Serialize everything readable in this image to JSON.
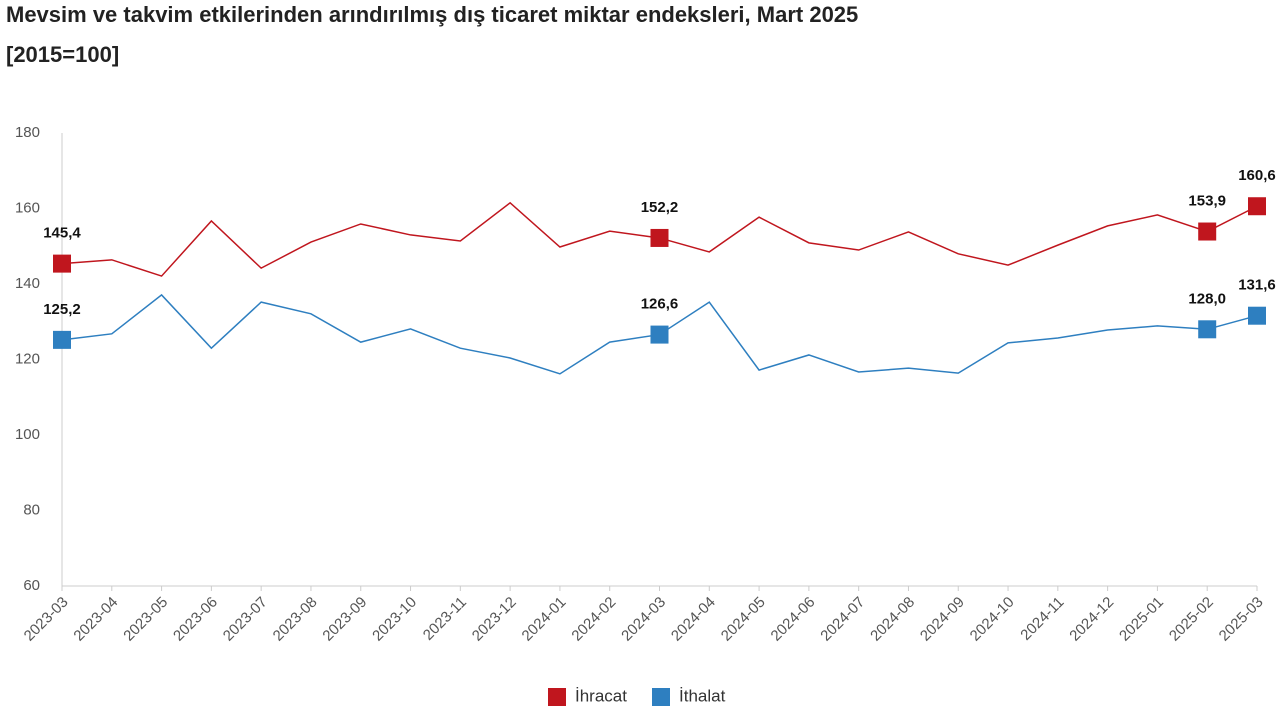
{
  "chart_data": {
    "type": "line",
    "title": "Mevsim ve takvim etkilerinden arındırılmış dış ticaret miktar endeksleri, Mart 2025",
    "subtitle": "[2015=100]",
    "categories": [
      "2023-03",
      "2023-04",
      "2023-05",
      "2023-06",
      "2023-07",
      "2023-08",
      "2023-09",
      "2023-10",
      "2023-11",
      "2023-12",
      "2024-01",
      "2024-02",
      "2024-03",
      "2024-04",
      "2024-05",
      "2024-06",
      "2024-07",
      "2024-08",
      "2024-09",
      "2024-10",
      "2024-11",
      "2024-12",
      "2025-01",
      "2025-02",
      "2025-03"
    ],
    "series": [
      {
        "name": "İhracat",
        "color": "#c0161e",
        "values": [
          145.4,
          146.4,
          142.1,
          156.7,
          144.2,
          151.1,
          155.9,
          153.0,
          151.4,
          161.5,
          149.8,
          154.0,
          152.2,
          148.5,
          157.7,
          150.9,
          149.0,
          153.8,
          148.0,
          145.0,
          150.3,
          155.4,
          158.3,
          153.9,
          160.6
        ],
        "value_labels": [
          "145,4",
          null,
          null,
          null,
          null,
          null,
          null,
          null,
          null,
          null,
          null,
          null,
          "152,2",
          null,
          null,
          null,
          null,
          null,
          null,
          null,
          null,
          null,
          null,
          "153,9",
          "160,6"
        ]
      },
      {
        "name": "İthalat",
        "color": "#2e7fc0",
        "values": [
          125.2,
          126.8,
          137.1,
          123.0,
          135.2,
          132.1,
          124.6,
          128.1,
          123.0,
          120.4,
          116.2,
          124.6,
          126.6,
          135.2,
          117.2,
          121.2,
          116.7,
          117.7,
          116.4,
          124.4,
          125.7,
          127.8,
          128.9,
          128.0,
          131.6
        ],
        "value_labels": [
          "125,2",
          null,
          null,
          null,
          null,
          null,
          null,
          null,
          null,
          null,
          null,
          null,
          "126,6",
          null,
          null,
          null,
          null,
          null,
          null,
          null,
          null,
          null,
          null,
          "128,0",
          "131,6"
        ]
      }
    ],
    "ylim": [
      60,
      180
    ],
    "yticks": [
      60,
      80,
      100,
      120,
      140,
      160,
      180
    ],
    "grid": false,
    "legend": "bottom"
  }
}
